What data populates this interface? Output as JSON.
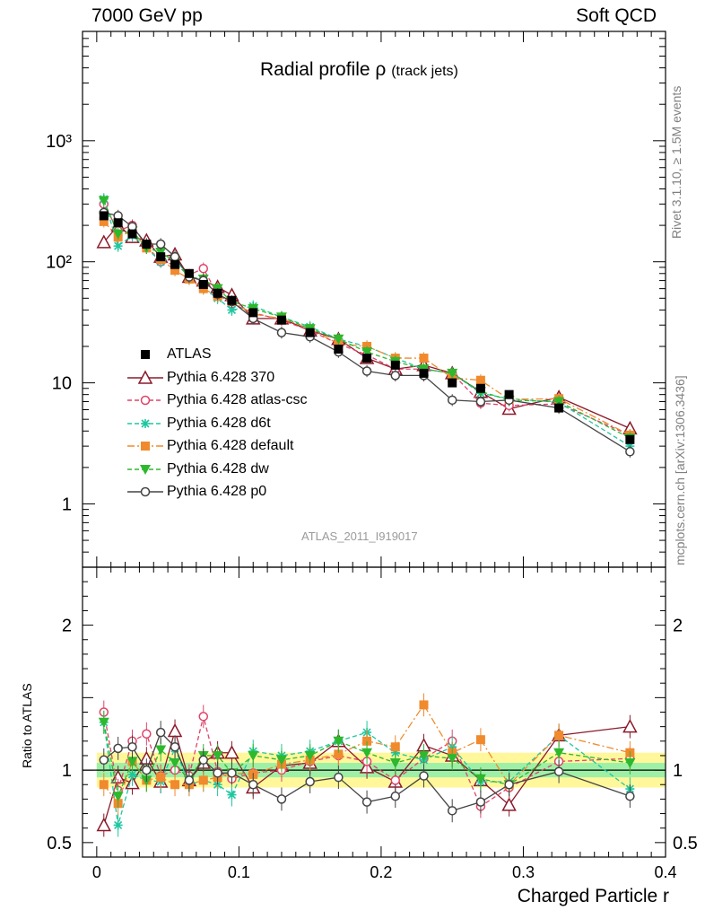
{
  "header": {
    "left": "7000 GeV pp",
    "right": "Soft QCD"
  },
  "title": {
    "main": "Radial profile ρ",
    "sub": "(track jets)"
  },
  "side_text": {
    "rivet": "Rivet 3.1.10, ≥ 1.5M events",
    "mcplots": "mcplots.cern.ch [arXiv:1306.3436]"
  },
  "analysis_label": "ATLAS_2011_I919017",
  "chart_data": {
    "type": "scatter",
    "xlabel": "Charged Particle r",
    "ylabel_main": "",
    "ylabel_ratio": "Ratio to ATLAS",
    "xlim": [
      -0.01,
      0.4
    ],
    "ylim_main": [
      0.3,
      8000
    ],
    "ylim_ratio": [
      0.4,
      2.4
    ],
    "log_y_main": true,
    "grid": false,
    "legend_position": "lower-left",
    "x_ticks": [
      "0",
      "0.1",
      "0.2",
      "0.3",
      "0.4"
    ],
    "y_ticks_main": [
      "1",
      "10",
      "10²",
      "10³"
    ],
    "y_ticks_ratio": [
      "0.5",
      "1",
      "2"
    ],
    "x": [
      0.005,
      0.015,
      0.025,
      0.035,
      0.045,
      0.055,
      0.065,
      0.075,
      0.085,
      0.095,
      0.11,
      0.13,
      0.15,
      0.17,
      0.19,
      0.21,
      0.23,
      0.25,
      0.27,
      0.29,
      0.325,
      0.375
    ],
    "series": [
      {
        "name": "ATLAS",
        "color": "#000000",
        "marker": "filled-square",
        "line": "none",
        "values": [
          240,
          210,
          170,
          140,
          110,
          95,
          80,
          65,
          55,
          48,
          38,
          33,
          26,
          19,
          16,
          14,
          12,
          10,
          9,
          8,
          6.2,
          3.4
        ],
        "ratio": [
          1,
          1,
          1,
          1,
          1,
          1,
          1,
          1,
          1,
          1,
          1,
          1,
          1,
          1,
          1,
          1,
          1,
          1,
          1,
          1,
          1,
          1
        ]
      },
      {
        "name": "Pythia 6.428 370",
        "color": "#8b1a2b",
        "marker": "open-triangle",
        "line": "solid",
        "values": [
          145,
          200,
          160,
          150,
          110,
          115,
          75,
          70,
          62,
          53,
          34,
          34,
          27,
          23,
          16,
          13,
          14,
          12,
          8.4,
          6.1,
          7.6,
          4.2
        ],
        "ratio": [
          0.62,
          0.95,
          0.91,
          1.08,
          0.92,
          1.27,
          0.93,
          1.05,
          1.12,
          1.12,
          0.88,
          1.03,
          1.05,
          1.2,
          1.02,
          0.92,
          1.17,
          1.1,
          0.93,
          0.76,
          1.24,
          1.3
        ]
      },
      {
        "name": "Pythia 6.428 atlas-csc",
        "color": "#e0446a",
        "marker": "open-circle",
        "line": "dashed",
        "values": [
          300,
          180,
          200,
          135,
          100,
          95,
          78,
          88,
          54,
          45,
          38,
          33,
          27,
          21,
          17,
          13,
          13,
          12,
          6.8,
          6.5,
          6.7,
          3.7
        ],
        "ratio": [
          1.4,
          0.86,
          1.2,
          1.25,
          0.96,
          1.0,
          0.96,
          1.37,
          0.99,
          0.94,
          0.98,
          1.0,
          1.06,
          1.1,
          1.06,
          0.93,
          1.08,
          1.2,
          0.75,
          0.88,
          1.06,
          1.08
        ]
      },
      {
        "name": "Pythia 6.428 d6t",
        "color": "#1ec7a0",
        "marker": "star",
        "line": "dashed",
        "values": [
          330,
          135,
          165,
          130,
          100,
          110,
          72,
          60,
          50,
          40,
          43,
          35,
          29,
          23,
          20,
          16,
          13,
          12,
          8.2,
          7.4,
          6.9,
          3.0
        ],
        "ratio": [
          1.33,
          0.62,
          0.97,
          0.93,
          0.92,
          1.15,
          0.9,
          0.93,
          0.9,
          0.83,
          1.13,
          1.1,
          1.13,
          1.2,
          1.26,
          1.12,
          1.07,
          1.16,
          0.92,
          0.92,
          1.24,
          0.87
        ]
      },
      {
        "name": "Pythia 6.428 default",
        "color": "#f08a2d",
        "marker": "filled-square",
        "line": "dashdot",
        "values": [
          215,
          160,
          180,
          130,
          105,
          85,
          72,
          60,
          52,
          47,
          37,
          34,
          28,
          21,
          20,
          16,
          16,
          11,
          10.5,
          7.3,
          7.4,
          3.7
        ],
        "ratio": [
          0.9,
          0.77,
          1.06,
          0.93,
          0.95,
          0.9,
          0.9,
          0.93,
          0.95,
          0.98,
          0.97,
          1.04,
          1.07,
          1.11,
          1.2,
          1.16,
          1.45,
          1.12,
          1.21,
          0.9,
          1.24,
          1.12
        ]
      },
      {
        "name": "Pythia 6.428 dw",
        "color": "#2db82d",
        "marker": "filled-triangle-down",
        "line": "dashed",
        "values": [
          320,
          170,
          180,
          130,
          120,
          100,
          75,
          72,
          60,
          47,
          41,
          35,
          28,
          23,
          18,
          15,
          13,
          12,
          8.5,
          7.2,
          7.0,
          3.5
        ],
        "ratio": [
          1.33,
          0.82,
          1.06,
          0.93,
          1.14,
          1.05,
          0.93,
          1.1,
          1.1,
          0.98,
          1.1,
          1.07,
          1.1,
          1.2,
          1.12,
          1.05,
          1.1,
          1.08,
          0.94,
          0.9,
          1.12,
          1.05
        ]
      },
      {
        "name": "Pythia 6.428 p0",
        "color": "#444444",
        "marker": "open-circle",
        "line": "solid",
        "values": [
          255,
          240,
          195,
          140,
          140,
          110,
          75,
          70,
          54,
          47,
          34,
          26,
          24,
          18,
          12.5,
          11.5,
          11.5,
          7.2,
          7.0,
          7.2,
          6.2,
          2.7
        ],
        "ratio": [
          1.07,
          1.15,
          1.16,
          1.0,
          1.26,
          1.16,
          0.93,
          1.07,
          0.98,
          0.98,
          0.9,
          0.8,
          0.92,
          0.95,
          0.78,
          0.82,
          0.96,
          0.72,
          0.78,
          0.9,
          0.99,
          0.82
        ]
      }
    ]
  }
}
